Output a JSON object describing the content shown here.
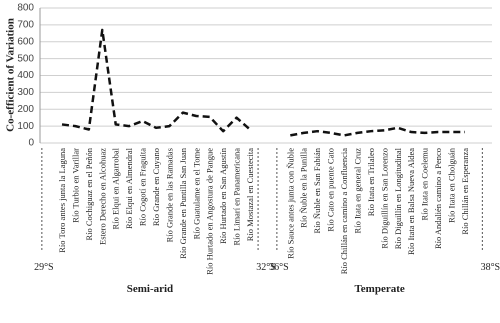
{
  "chart_data": {
    "type": "line",
    "y_label": "Co-efficient of Variation",
    "categories": [
      "Río Toro antes junta la Laguna",
      "Río Turbio en Varillar",
      "Río Cochiguaz en el Peñón",
      "Estero Derecho en Alcohuaz",
      "Río Elqui en Algarrobal",
      "Río Elqui en Almendral",
      "Río Cogotí en Fraguita",
      "Río Grande en Cuyano",
      "Río Grande en las Ramadas",
      "Río Grande en Puntilla San Juan",
      "Río Guatulame en el Tome",
      "Río Hurtado en Angostura de Pangue",
      "Río Hurtado en San Agustín",
      "Río Limarí en Panamericana",
      "Río Mostazal en Cuestecita",
      null,
      null,
      "Río Sauce antes junta con Ñuble",
      "Río Ñuble en la Punilla",
      "Río Ñuble en San Fabián",
      "Río Cato en puente Cato",
      "Río Chillán en camino a Confluencia",
      "Río Itata en general Cruz",
      "Río Itata en Trilaleo",
      "Río Diguillín en San Lorenzo",
      "Río Diguillín en Longitudinal",
      "Río Itata en Balsa Nueva Aldea",
      "Río Itata en Coelemu",
      "Río Andalién camino a Penco",
      "Río Itata en Cholguán",
      "Río Chillán en Esperanza"
    ],
    "series": [
      {
        "color": "#111111",
        "values": [
          110,
          100,
          80,
          670,
          110,
          100,
          130,
          90,
          100,
          180,
          160,
          155,
          70,
          150,
          80,
          null,
          null,
          45,
          60,
          70,
          60,
          45,
          60,
          70,
          75,
          90,
          65,
          60,
          65,
          65,
          65
        ]
      }
    ],
    "groups": [
      {
        "name": "Semi-arid",
        "bounds": [
          "29°S",
          "32°S"
        ]
      },
      {
        "name": "Temperate",
        "bounds": [
          "36°S",
          "38°S"
        ]
      }
    ],
    "ylim": [
      0,
      800
    ],
    "yticks": [
      0,
      100,
      200,
      300,
      400,
      500,
      600,
      700,
      800
    ],
    "grid": true
  }
}
